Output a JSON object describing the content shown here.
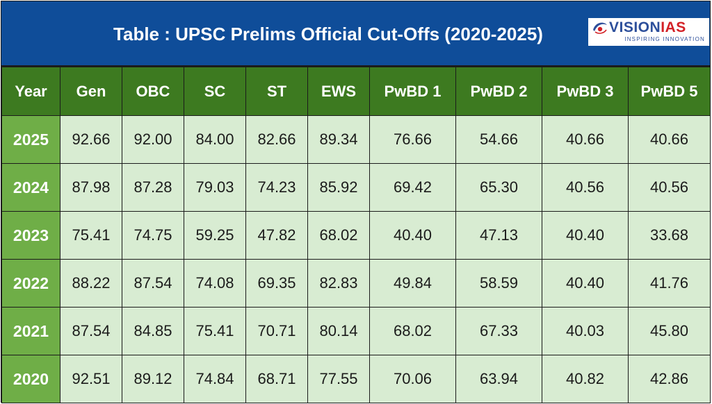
{
  "title": "Table : UPSC Prelims Official Cut-Offs (2020-2025)",
  "logo": {
    "vision": "VISION",
    "ias": "IAS",
    "tagline": "INSPIRING INNOVATION"
  },
  "colors": {
    "banner": "#0f4d99",
    "header": "#3d7a20",
    "year_cell": "#6fae47",
    "data_cell": "#d8ecd2"
  },
  "headers": [
    "Year",
    "Gen",
    "OBC",
    "SC",
    "ST",
    "EWS",
    "PwBD 1",
    "PwBD 2",
    "PwBD 3",
    "PwBD 5"
  ],
  "rows": [
    [
      "2025",
      "92.66",
      "92.00",
      "84.00",
      "82.66",
      "89.34",
      "76.66",
      "54.66",
      "40.66",
      "40.66"
    ],
    [
      "2024",
      "87.98",
      "87.28",
      "79.03",
      "74.23",
      "85.92",
      "69.42",
      "65.30",
      "40.56",
      "40.56"
    ],
    [
      "2023",
      "75.41",
      "74.75",
      "59.25",
      "47.82",
      "68.02",
      "40.40",
      "47.13",
      "40.40",
      "33.68"
    ],
    [
      "2022",
      "88.22",
      "87.54",
      "74.08",
      "69.35",
      "82.83",
      "49.84",
      "58.59",
      "40.40",
      "41.76"
    ],
    [
      "2021",
      "87.54",
      "84.85",
      "75.41",
      "70.71",
      "80.14",
      "68.02",
      "67.33",
      "40.03",
      "45.80"
    ],
    [
      "2020",
      "92.51",
      "89.12",
      "74.84",
      "68.71",
      "77.55",
      "70.06",
      "63.94",
      "40.82",
      "42.86"
    ]
  ]
}
